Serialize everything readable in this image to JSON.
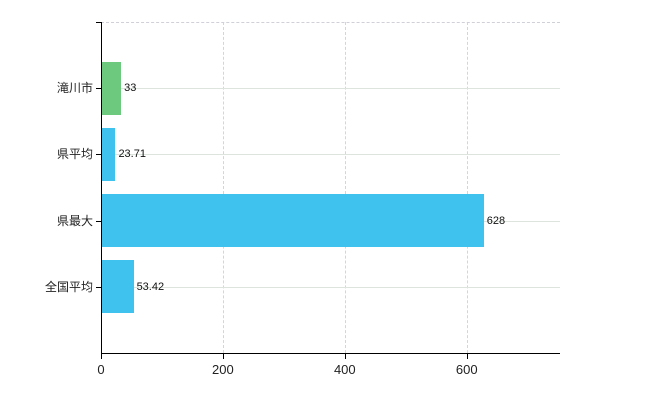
{
  "chart_data": {
    "type": "bar",
    "orientation": "horizontal",
    "title": "",
    "xlabel": "",
    "ylabel": "",
    "categories": [
      "滝川市",
      "県平均",
      "県最大",
      "全国平均"
    ],
    "values": [
      33,
      23.71,
      628,
      53.42
    ],
    "value_labels": [
      "33",
      "23.71",
      "628",
      "53.42"
    ],
    "bar_colors": [
      "#6cc97e",
      "#40c2ef",
      "#40c2ef",
      "#40c2ef"
    ],
    "x_ticks": [
      0,
      200,
      400,
      600
    ],
    "x_tick_labels": [
      "0",
      "200",
      "400",
      "600"
    ],
    "xlim": [
      0,
      753
    ],
    "legend": "none",
    "grid": {
      "vertical": "dashed",
      "horizontal": "solid"
    }
  },
  "colors": {
    "background": "#ffffff",
    "bar_default": "#40c2ef",
    "bar_highlight": "#6cc97e",
    "axis": "#000000",
    "grid_vertical": "#d4d4da",
    "grid_horizontal": "#dde3dd",
    "plot_border_top": "#cfd0d8",
    "category_label_text": "#222222",
    "value_label_text": "#111111"
  }
}
